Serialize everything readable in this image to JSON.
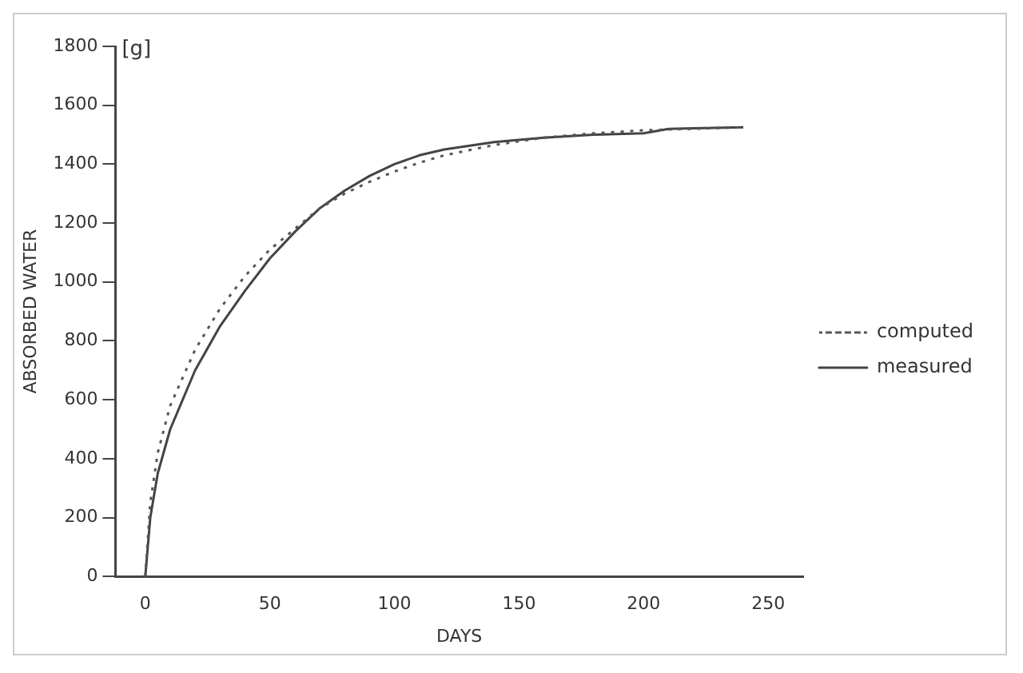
{
  "chart_data": {
    "type": "line",
    "xlabel": "DAYS",
    "ylabel": "ABSORBED WATER",
    "annotations": [
      "[g]"
    ],
    "xlim": [
      -12,
      264
    ],
    "xticks": [
      0,
      50,
      100,
      150,
      200,
      250
    ],
    "ylim": [
      0,
      1800
    ],
    "yticks": [
      0,
      200,
      400,
      600,
      800,
      1000,
      1200,
      1400,
      1600,
      1800
    ],
    "grid": false,
    "legend": "right",
    "marker": "none",
    "series": [
      {
        "name": "computed",
        "color": "#555555",
        "line_style": "dotted",
        "x": [
          0,
          2,
          5,
          10,
          20,
          30,
          40,
          50,
          60,
          70,
          80,
          90,
          100,
          110,
          120,
          140,
          160,
          180,
          200,
          220,
          240
        ],
        "values": [
          0,
          250,
          420,
          580,
          770,
          910,
          1020,
          1110,
          1180,
          1250,
          1300,
          1340,
          1375,
          1405,
          1430,
          1465,
          1490,
          1505,
          1515,
          1520,
          1525
        ]
      },
      {
        "name": "measured",
        "color": "#444444",
        "line_style": "solid",
        "x": [
          0,
          2,
          5,
          10,
          20,
          30,
          40,
          50,
          60,
          70,
          80,
          90,
          100,
          110,
          120,
          140,
          160,
          180,
          200,
          210,
          220,
          240
        ],
        "values": [
          0,
          200,
          350,
          500,
          700,
          850,
          970,
          1080,
          1170,
          1250,
          1310,
          1360,
          1400,
          1430,
          1450,
          1475,
          1490,
          1500,
          1505,
          1520,
          1522,
          1525
        ]
      }
    ]
  }
}
